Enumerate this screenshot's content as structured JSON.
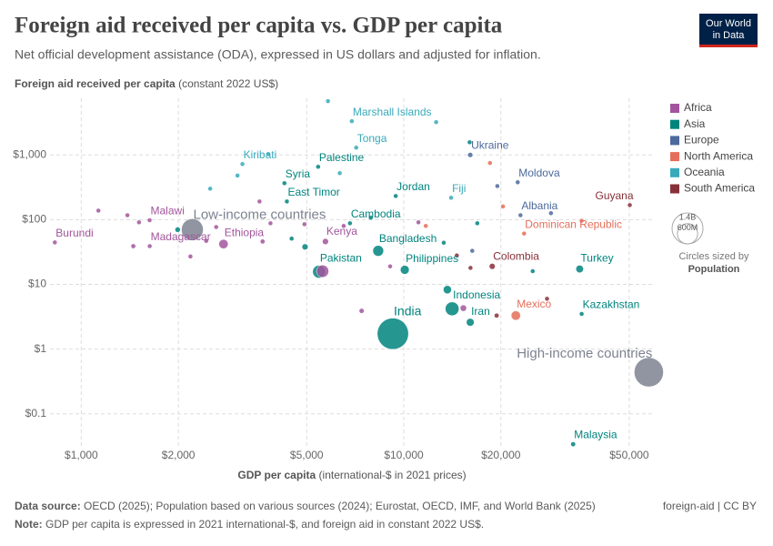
{
  "chart_data": {
    "type": "scatter",
    "title": "Foreign aid received per capita vs. GDP per capita",
    "subtitle": "Net official development assistance (ODA), expressed in US dollars and adjusted for inflation.",
    "ylabel": "Foreign aid received per capita",
    "ylabel_unit": "(constant 2022 US$)",
    "xlabel": "GDP per capita",
    "xlabel_unit": "(international-$ in 2021 prices)",
    "xscale": "log",
    "yscale": "log",
    "grid": true,
    "legend": "right",
    "xlim": [
      800,
      60000
    ],
    "ylim": [
      0.03,
      7500
    ],
    "xticks": [
      {
        "value": 1000,
        "label": "$1,000"
      },
      {
        "value": 2000,
        "label": "$2,000"
      },
      {
        "value": 5000,
        "label": "$5,000"
      },
      {
        "value": 10000,
        "label": "$10,000"
      },
      {
        "value": 20000,
        "label": "$20,000"
      },
      {
        "value": 50000,
        "label": "$50,000"
      }
    ],
    "yticks": [
      {
        "value": 0.1,
        "label": "$0.1"
      },
      {
        "value": 1,
        "label": "$1"
      },
      {
        "value": 10,
        "label": "$10"
      },
      {
        "value": 100,
        "label": "$100"
      },
      {
        "value": 1000,
        "label": "$1,000"
      }
    ],
    "series": [
      {
        "name": "Africa",
        "color": "#a2559c",
        "labels": [
          "Burundi",
          "Malawi",
          "Madagascar",
          "Ethiopia",
          "Kenya",
          null,
          null,
          null,
          null,
          null,
          null,
          null,
          null,
          null,
          null,
          null,
          null,
          null,
          null,
          null,
          null,
          null
        ],
        "x": [
          828,
          1629,
          1630,
          2760,
          5715,
          5600,
          1450,
          1130,
          1390,
          1510,
          2180,
          2620,
          2440,
          3650,
          3860,
          3570,
          4920,
          6510,
          7400,
          9070,
          11100,
          15300
        ],
        "y": [
          44.5,
          98,
          39,
          42,
          46,
          16,
          39,
          138,
          117,
          91,
          27,
          77,
          47,
          46,
          88,
          191,
          85,
          80,
          3.9,
          19,
          91,
          4.3
        ],
        "sizes": [
          13000000,
          21000000,
          30000000,
          126000000,
          55000000,
          223000000,
          33000000,
          8000000,
          9000000,
          18000000,
          20000000,
          17000000,
          27000000,
          33000000,
          10000000,
          2000000,
          5000000,
          9000000,
          36000000,
          28000000,
          2000000,
          60000000
        ]
      },
      {
        "name": "Asia",
        "color": "#00847e",
        "labels": [
          "India",
          "Pakistan",
          "Bangladesh",
          "Philippines",
          "Indonesia",
          "Iran",
          "Turkey",
          "Kazakhstan",
          "Malaysia",
          "Syria",
          "Palestine",
          "East Timor",
          "Jordan",
          "Cambodia",
          null,
          null,
          null,
          null,
          null,
          null,
          null,
          null,
          null
        ],
        "x": [
          9250,
          5460,
          8330,
          10070,
          14120,
          16070,
          35100,
          35600,
          33500,
          4265,
          5425,
          4340,
          9440,
          6810,
          1990,
          4490,
          4940,
          13650,
          16000,
          16900,
          25100,
          13300,
          7900
        ],
        "y": [
          1.73,
          15.7,
          33,
          16.8,
          4.2,
          2.6,
          17.3,
          3.5,
          0.034,
          366,
          656,
          191,
          232,
          88,
          70,
          51,
          38,
          8.3,
          1570,
          88,
          16,
          44,
          107
        ],
        "sizes": [
          1430000000,
          240000000,
          171000000,
          115000000,
          277000000,
          89000000,
          85000000,
          20000000,
          34000000,
          23000000,
          5000000,
          1300000,
          11000000,
          17000000,
          42000000,
          7000000,
          54000000,
          99000000,
          500000,
          5000000,
          3000000,
          10000000,
          3000000
        ]
      },
      {
        "name": "Europe",
        "color": "#4c6a9c",
        "labels": [
          "Ukraine",
          "Moldova",
          "Albania",
          null,
          null,
          null
        ],
        "x": [
          16070,
          22550,
          23000,
          16300,
          28600,
          19500
        ],
        "y": [
          1000,
          378,
          117,
          33,
          126,
          330
        ],
        "sizes": [
          38000000,
          2500000,
          2800000,
          3000000,
          600000,
          2000000
        ]
      },
      {
        "name": "North America",
        "color": "#e56e5a",
        "labels": [
          "Dominican Republic",
          "Mexico",
          null,
          null,
          null,
          null
        ],
        "x": [
          23600,
          22250,
          18500,
          35600,
          11700,
          20300
        ],
        "y": [
          61,
          3.3,
          750,
          96,
          80,
          160
        ],
        "sizes": [
          11000000,
          128000000,
          100000,
          300000,
          11000000,
          5000000
        ]
      },
      {
        "name": "Oceania",
        "color": "#38aaba",
        "labels": [
          "Marshall Islands",
          "Tonga",
          "Kiribati",
          "Fiji",
          null,
          null,
          null,
          null,
          null,
          null
        ],
        "x": [
          6900,
          7120,
          3160,
          14020,
          2510,
          3800,
          6330,
          12600,
          5820,
          3050
        ],
        "y": [
          3320,
          1296,
          723,
          218,
          301,
          1030,
          523,
          3210,
          6770,
          480
        ],
        "sizes": [
          40000,
          100000,
          130000,
          900000,
          300000,
          100000,
          700000,
          20000,
          10000,
          10000000
        ]
      },
      {
        "name": "South America",
        "color": "#883039",
        "labels": [
          "Guyana",
          "Colombia",
          null,
          null,
          null,
          null
        ],
        "x": [
          50200,
          18800,
          19400,
          14600,
          27800,
          16100
        ],
        "y": [
          168,
          19,
          3.3,
          28,
          6,
          18
        ],
        "sizes": [
          800000,
          52000000,
          34000000,
          12000000,
          18000000,
          7000000
        ]
      }
    ],
    "income_groups": {
      "color": "#7d8290",
      "labels": [
        "Low-income countries",
        "High-income countries"
      ],
      "x": [
        2210,
        57500
      ],
      "y": [
        70,
        0.44
      ],
      "sizes": [
        700000000,
        1250000000
      ]
    },
    "size_legend": {
      "ticks": [
        {
          "value": 1400000000,
          "label": "1.4B"
        },
        {
          "value": 600000000,
          "label": "600M"
        }
      ],
      "caption": "Circles sized by",
      "variable": "Population"
    }
  },
  "logo": {
    "lines": [
      "Our World",
      "in Data"
    ]
  },
  "footer": {
    "source_label": "Data source:",
    "source": "OECD (2025); Population based on various sources (2024); Eurostat, OECD, IMF, and World Bank (2025)",
    "note_label": "Note:",
    "note": "GDP per capita is expressed in 2021 international-$, and foreign aid in constant 2022 US$.",
    "right": "foreign-aid | CC BY"
  }
}
